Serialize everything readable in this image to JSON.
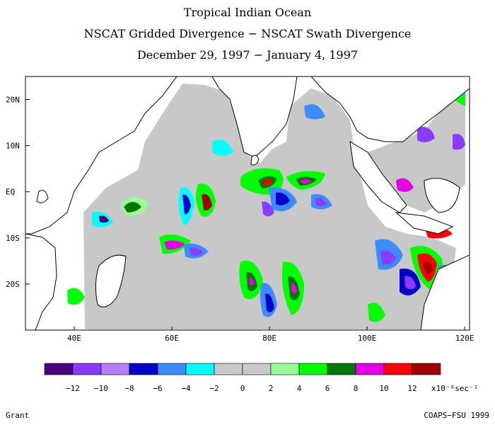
{
  "titles": {
    "line1": "Tropical Indian Ocean",
    "line2": "NSCAT Gridded Divergence − NSCAT Swath Divergence",
    "line3": "December 29, 1997 − January 4, 1997"
  },
  "map": {
    "lon_range": [
      30,
      121
    ],
    "lat_range": [
      -30,
      25
    ],
    "lon_ticks": [
      "40E",
      "60E",
      "80E",
      "100E",
      "120E"
    ],
    "lon_tick_values": [
      40,
      60,
      80,
      100,
      120
    ],
    "lat_ticks": [
      "20N",
      "10N",
      "EQ",
      "10S",
      "20S"
    ],
    "lat_tick_values": [
      20,
      10,
      0,
      -10,
      -20
    ],
    "land_color": "#ffffff",
    "no_data_color": "#ffffff"
  },
  "colorbar": {
    "colors": [
      "#4b0082",
      "#8a3bff",
      "#b77dff",
      "#0000cc",
      "#3c8cff",
      "#00ffff",
      "#c8c8c8",
      "#c8c8c8",
      "#96ff96",
      "#00ff00",
      "#007800",
      "#e600e6",
      "#ff0000",
      "#a00000"
    ],
    "labels": [
      "−12",
      "−10",
      "−8",
      "−6",
      "−4",
      "−2",
      "0",
      "2",
      "4",
      "6",
      "8",
      "10",
      "12"
    ],
    "units": "x10⁻⁶sec⁻¹"
  },
  "credits": {
    "left": "Grant",
    "right": "COAPS−FSU 1999"
  }
}
